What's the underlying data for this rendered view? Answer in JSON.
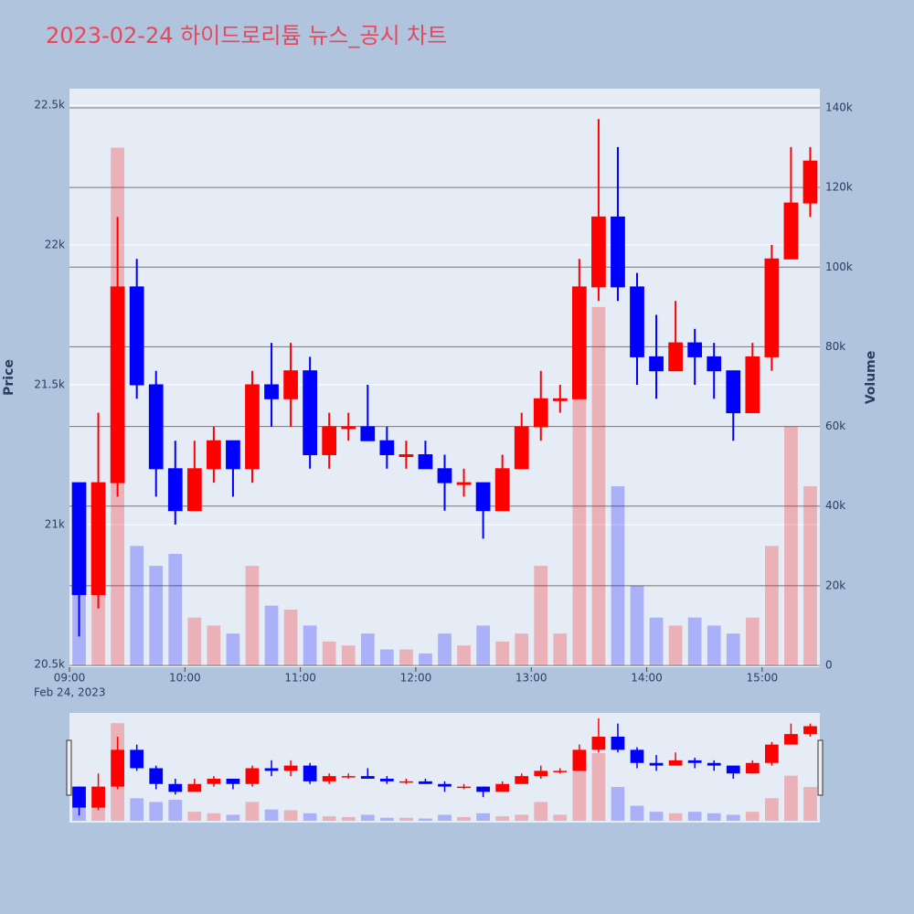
{
  "chart_data": {
    "type": "candlestick",
    "title": "2023-02-24 하이드로리튬 뉴스_공시 차트",
    "ylabel": "Price",
    "y2label": "Volume",
    "x_date_label": "Feb 24, 2023",
    "increasing_color": "#ff0000",
    "decreasing_color": "#0000ff",
    "x": [
      "09:00",
      "09:10",
      "09:20",
      "09:30",
      "09:40",
      "09:50",
      "10:00",
      "10:10",
      "10:20",
      "10:30",
      "10:40",
      "10:50",
      "11:00",
      "11:10",
      "11:20",
      "11:30",
      "11:40",
      "11:50",
      "12:00",
      "12:10",
      "12:20",
      "12:30",
      "12:40",
      "12:50",
      "13:00",
      "13:10",
      "13:20",
      "13:30",
      "13:40",
      "13:50",
      "14:00",
      "14:10",
      "14:20",
      "14:30",
      "14:40",
      "14:50",
      "15:00",
      "15:10",
      "15:20"
    ],
    "open": [
      21150,
      20750,
      21150,
      21850,
      21500,
      21200,
      21050,
      21200,
      21300,
      21200,
      21500,
      21450,
      21550,
      21250,
      21350,
      21350,
      21300,
      21250,
      21250,
      21200,
      21150,
      21150,
      21050,
      21200,
      21350,
      21450,
      21450,
      21850,
      22100,
      21850,
      21600,
      21550,
      21650,
      21600,
      21550,
      21400,
      21600,
      21950,
      22150
    ],
    "high": [
      21150,
      21400,
      22100,
      21950,
      21550,
      21300,
      21300,
      21350,
      21300,
      21550,
      21650,
      21650,
      21600,
      21400,
      21400,
      21500,
      21350,
      21300,
      21300,
      21250,
      21200,
      21150,
      21250,
      21400,
      21550,
      21500,
      21950,
      22450,
      22350,
      21900,
      21750,
      21800,
      21700,
      21650,
      21550,
      21650,
      22000,
      22350,
      22350
    ],
    "low": [
      20600,
      20700,
      21100,
      21450,
      21100,
      21000,
      21050,
      21150,
      21100,
      21150,
      21350,
      21350,
      21200,
      21200,
      21300,
      21300,
      21200,
      21200,
      21200,
      21050,
      21100,
      20950,
      21050,
      21200,
      21300,
      21400,
      21450,
      21800,
      21800,
      21500,
      21450,
      21550,
      21500,
      21450,
      21300,
      21400,
      21550,
      21950,
      22100
    ],
    "close": [
      20750,
      21150,
      21850,
      21500,
      21200,
      21050,
      21200,
      21300,
      21200,
      21500,
      21450,
      21550,
      21250,
      21350,
      21350,
      21300,
      21250,
      21250,
      21200,
      21150,
      21150,
      21050,
      21200,
      21350,
      21450,
      21450,
      21850,
      22100,
      21850,
      21600,
      21550,
      21650,
      21600,
      21550,
      21400,
      21600,
      21950,
      22150,
      22300
    ],
    "volume": [
      35000,
      45000,
      130000,
      30000,
      25000,
      28000,
      12000,
      10000,
      8000,
      25000,
      15000,
      14000,
      10000,
      6000,
      5000,
      8000,
      4000,
      4000,
      3000,
      8000,
      5000,
      10000,
      6000,
      8000,
      25000,
      8000,
      70000,
      90000,
      45000,
      20000,
      12000,
      10000,
      12000,
      10000,
      8000,
      12000,
      30000,
      60000,
      45000
    ],
    "xlim": [
      "09:00",
      "15:30"
    ],
    "xticks": [
      "09:00",
      "10:00",
      "11:00",
      "12:00",
      "13:00",
      "14:00",
      "15:00"
    ],
    "ylim": [
      20500,
      22500
    ],
    "yticks": [
      {
        "value": 20500,
        "label": "20.5k"
      },
      {
        "value": 21000,
        "label": "21k"
      },
      {
        "value": 21500,
        "label": "21.5k"
      },
      {
        "value": 22000,
        "label": "22k"
      },
      {
        "value": 22500,
        "label": "22.5k"
      }
    ],
    "y2lim": [
      0,
      140000
    ],
    "y2ticks": [
      0,
      {
        "value": 20000,
        "label": "20k"
      },
      {
        "value": 40000,
        "label": "40k"
      },
      {
        "value": 60000,
        "label": "60k"
      },
      {
        "value": 80000,
        "label": "80k"
      },
      {
        "value": 100000,
        "label": "100k"
      },
      {
        "value": 120000,
        "label": "120k"
      },
      {
        "value": 140000,
        "label": "140k"
      }
    ]
  }
}
